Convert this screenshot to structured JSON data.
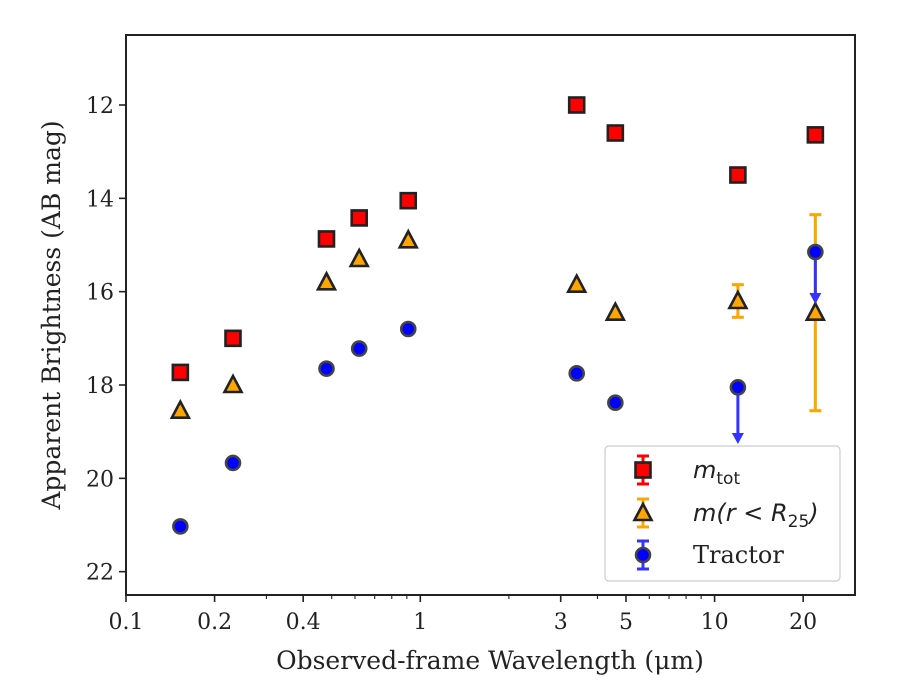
{
  "chart_data": {
    "type": "scatter",
    "title": "",
    "xlabel": "Observed-frame Wavelength (μm)",
    "ylabel": "Apparent Brightness (AB mag)",
    "xscale": "log",
    "xlim": [
      0.1,
      30
    ],
    "ylim": [
      22.5,
      10.5
    ],
    "y_inverted": true,
    "xticks": [
      0.1,
      0.2,
      0.4,
      1,
      3,
      5,
      10,
      20
    ],
    "xtick_labels": [
      "0.1",
      "0.2",
      "0.4",
      "1",
      "3",
      "5",
      "10",
      "20"
    ],
    "yticks": [
      12,
      14,
      16,
      18,
      20,
      22
    ],
    "ytick_labels": [
      "12",
      "14",
      "16",
      "18",
      "20",
      "22"
    ],
    "grid": false,
    "legend_position": "bottom-right",
    "series": [
      {
        "name": "m_tot",
        "legend_label": {
          "base": "m",
          "sub": "tot"
        },
        "marker": "square",
        "color": "#ff0000",
        "edge_color": "#222222",
        "errorbar_color": "#ff0000",
        "points": [
          {
            "x": 0.153,
            "y": 17.73
          },
          {
            "x": 0.231,
            "y": 17.0
          },
          {
            "x": 0.48,
            "y": 14.87
          },
          {
            "x": 0.62,
            "y": 14.42
          },
          {
            "x": 0.91,
            "y": 14.05
          },
          {
            "x": 3.4,
            "y": 12.0
          },
          {
            "x": 4.6,
            "y": 12.6
          },
          {
            "x": 12.0,
            "y": 13.5
          },
          {
            "x": 22.0,
            "y": 12.64
          }
        ]
      },
      {
        "name": "m(r < R25)",
        "legend_label": {
          "prefix": "m(r < R",
          "sub": "25",
          "suffix": ")"
        },
        "marker": "triangle",
        "color": "#ffa500",
        "edge_color": "#222222",
        "errorbar_color": "#ffa500",
        "points": [
          {
            "x": 0.153,
            "y": 18.55
          },
          {
            "x": 0.231,
            "y": 18.0
          },
          {
            "x": 0.48,
            "y": 15.8
          },
          {
            "x": 0.62,
            "y": 15.3
          },
          {
            "x": 0.91,
            "y": 14.9
          },
          {
            "x": 3.4,
            "y": 15.85
          },
          {
            "x": 4.6,
            "y": 16.45
          },
          {
            "x": 12.0,
            "y": 16.2,
            "yerr_low": 0.35,
            "yerr_high": 0.35
          },
          {
            "x": 22.0,
            "y": 16.45,
            "yerr_low": 2.1,
            "yerr_high": 2.1
          }
        ]
      },
      {
        "name": "Tractor",
        "marker": "circle",
        "color": "#0000ff",
        "edge_color": "#444444",
        "errorbar_color": "#3333ff",
        "points": [
          {
            "x": 0.153,
            "y": 21.03
          },
          {
            "x": 0.231,
            "y": 19.67
          },
          {
            "x": 0.48,
            "y": 17.65
          },
          {
            "x": 0.62,
            "y": 17.22
          },
          {
            "x": 0.91,
            "y": 16.8
          },
          {
            "x": 3.4,
            "y": 17.75
          },
          {
            "x": 4.6,
            "y": 18.38
          },
          {
            "x": 12.0,
            "y": 18.05,
            "upper_limit_to": 19.2
          },
          {
            "x": 22.0,
            "y": 15.15,
            "upper_limit_to": 16.2
          }
        ]
      }
    ]
  }
}
